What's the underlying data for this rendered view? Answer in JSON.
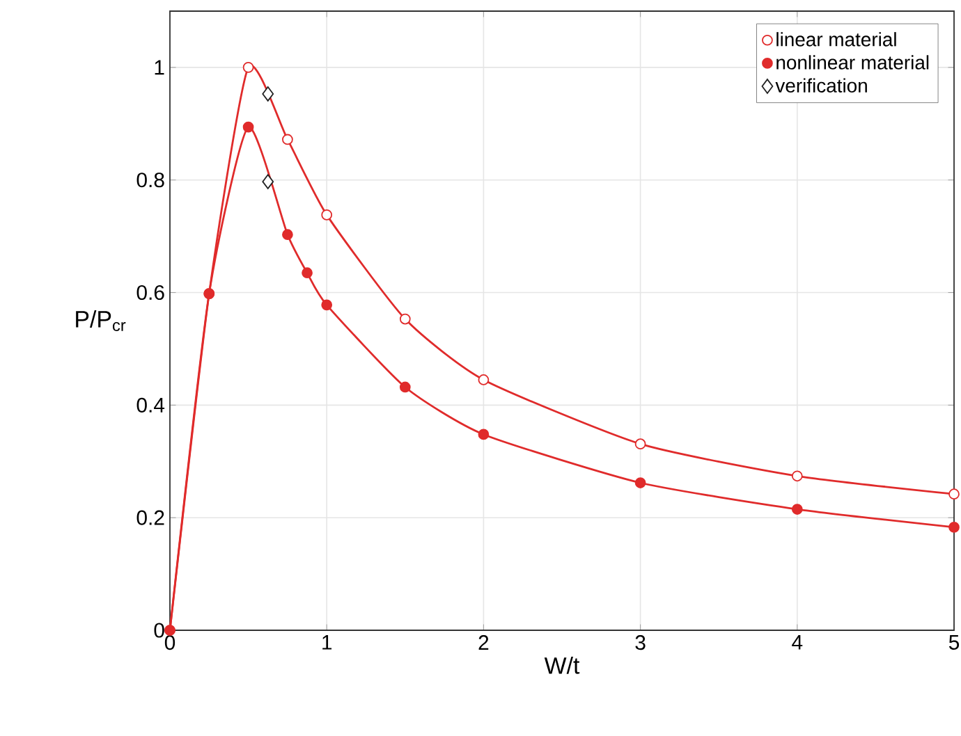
{
  "chart_data": {
    "type": "line",
    "xlabel": "W/t",
    "ylabel": "P/P$_{cr}$",
    "xlim": [
      0,
      5
    ],
    "ylim": [
      0,
      1.1
    ],
    "xticks": [
      0,
      1,
      2,
      3,
      4,
      5
    ],
    "yticks": [
      0,
      0.2,
      0.4,
      0.6,
      0.8,
      1
    ],
    "grid": true,
    "legend": "top right",
    "line_style": "solid",
    "series": [
      {
        "name": "linear material",
        "color": "#e02b2b",
        "marker": "circle",
        "x": [
          0,
          0.25,
          0.5,
          0.75,
          1,
          1.5,
          2,
          3,
          4,
          5
        ],
        "values": [
          0,
          0.598,
          1.0,
          0.872,
          0.738,
          0.553,
          0.445,
          0.331,
          0.274,
          0.242
        ]
      },
      {
        "name": "nonlinear material",
        "color": "#e02b2b",
        "marker": "circle",
        "x": [
          0,
          0.25,
          0.5,
          0.75,
          0.875,
          1,
          1.5,
          2,
          3,
          4,
          5
        ],
        "values": [
          0,
          0.598,
          0.894,
          0.703,
          0.635,
          0.578,
          0.432,
          0.348,
          0.262,
          0.215,
          0.183
        ]
      },
      {
        "name": "verification",
        "type": "scatter",
        "color": "#222222",
        "marker": "diamond",
        "x": [
          0.625,
          0.625
        ],
        "values": [
          0.953,
          0.797
        ]
      }
    ]
  }
}
